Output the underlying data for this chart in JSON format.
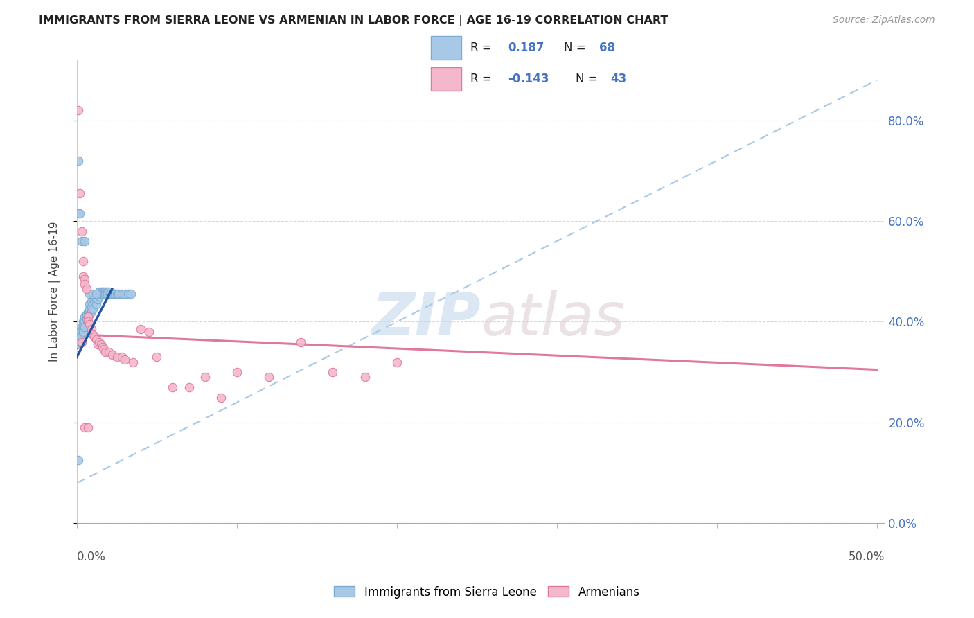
{
  "title": "IMMIGRANTS FROM SIERRA LEONE VS ARMENIAN IN LABOR FORCE | AGE 16-19 CORRELATION CHART",
  "source": "Source: ZipAtlas.com",
  "ylabel_label": "In Labor Force | Age 16-19",
  "watermark_zip": "ZIP",
  "watermark_atlas": "atlas",
  "sierra_leone_color": "#a8c8e8",
  "sierra_leone_edge": "#7aaacf",
  "armenian_color": "#f4b8cc",
  "armenian_edge": "#e07898",
  "trend_sl_dash_x0": 0.0,
  "trend_sl_dash_y0": 0.08,
  "trend_sl_dash_x1": 0.5,
  "trend_sl_dash_y1": 0.88,
  "trend_arm_x0": 0.0,
  "trend_arm_y0": 0.375,
  "trend_arm_x1": 0.5,
  "trend_arm_y1": 0.305,
  "trend_sl_solid_x0": 0.0,
  "trend_sl_solid_y0": 0.33,
  "trend_sl_solid_x1": 0.022,
  "trend_sl_solid_y1": 0.465,
  "xlim_min": 0.0,
  "xlim_max": 0.505,
  "ylim_min": 0.0,
  "ylim_max": 0.92,
  "yticks": [
    0.0,
    0.2,
    0.4,
    0.6,
    0.8
  ],
  "ytick_labels": [
    "0.0%",
    "20.0%",
    "40.0%",
    "60.0%",
    "80.0%"
  ],
  "r_sl": "0.187",
  "n_sl": "68",
  "r_arm": "-0.143",
  "n_arm": "43",
  "background_color": "#ffffff",
  "grid_color": "#d8d8d8",
  "sl_pts_x": [
    0.001,
    0.001,
    0.001,
    0.002,
    0.002,
    0.002,
    0.003,
    0.003,
    0.003,
    0.004,
    0.004,
    0.004,
    0.005,
    0.005,
    0.005,
    0.006,
    0.006,
    0.007,
    0.007,
    0.007,
    0.008,
    0.008,
    0.008,
    0.009,
    0.009,
    0.009,
    0.01,
    0.01,
    0.01,
    0.011,
    0.011,
    0.012,
    0.012,
    0.012,
    0.013,
    0.013,
    0.014,
    0.014,
    0.015,
    0.015,
    0.016,
    0.016,
    0.017,
    0.017,
    0.018,
    0.018,
    0.019,
    0.019,
    0.02,
    0.021,
    0.022,
    0.023,
    0.024,
    0.025,
    0.026,
    0.028,
    0.03,
    0.032,
    0.034,
    0.001,
    0.001,
    0.002,
    0.003,
    0.005,
    0.008,
    0.01,
    0.012,
    0.001
  ],
  "sl_pts_y": [
    0.375,
    0.365,
    0.355,
    0.38,
    0.37,
    0.36,
    0.39,
    0.38,
    0.37,
    0.4,
    0.39,
    0.38,
    0.41,
    0.4,
    0.39,
    0.415,
    0.405,
    0.42,
    0.41,
    0.4,
    0.435,
    0.425,
    0.415,
    0.44,
    0.43,
    0.42,
    0.445,
    0.435,
    0.425,
    0.45,
    0.44,
    0.455,
    0.445,
    0.435,
    0.455,
    0.445,
    0.46,
    0.45,
    0.46,
    0.455,
    0.46,
    0.455,
    0.46,
    0.455,
    0.46,
    0.455,
    0.46,
    0.455,
    0.46,
    0.455,
    0.455,
    0.455,
    0.455,
    0.455,
    0.455,
    0.455,
    0.455,
    0.455,
    0.455,
    0.615,
    0.72,
    0.615,
    0.56,
    0.56,
    0.455,
    0.455,
    0.455,
    0.125
  ],
  "arm_pts_x": [
    0.001,
    0.002,
    0.003,
    0.004,
    0.004,
    0.005,
    0.005,
    0.006,
    0.007,
    0.007,
    0.008,
    0.009,
    0.01,
    0.011,
    0.012,
    0.013,
    0.014,
    0.015,
    0.016,
    0.017,
    0.018,
    0.02,
    0.022,
    0.025,
    0.028,
    0.03,
    0.035,
    0.04,
    0.045,
    0.05,
    0.06,
    0.07,
    0.08,
    0.09,
    0.1,
    0.12,
    0.14,
    0.16,
    0.18,
    0.2,
    0.003,
    0.005,
    0.007
  ],
  "arm_pts_y": [
    0.82,
    0.655,
    0.58,
    0.52,
    0.49,
    0.485,
    0.475,
    0.465,
    0.41,
    0.4,
    0.395,
    0.385,
    0.375,
    0.37,
    0.365,
    0.355,
    0.36,
    0.355,
    0.35,
    0.345,
    0.34,
    0.34,
    0.335,
    0.33,
    0.33,
    0.325,
    0.32,
    0.385,
    0.38,
    0.33,
    0.27,
    0.27,
    0.29,
    0.25,
    0.3,
    0.29,
    0.36,
    0.3,
    0.29,
    0.32,
    0.36,
    0.19,
    0.19
  ]
}
